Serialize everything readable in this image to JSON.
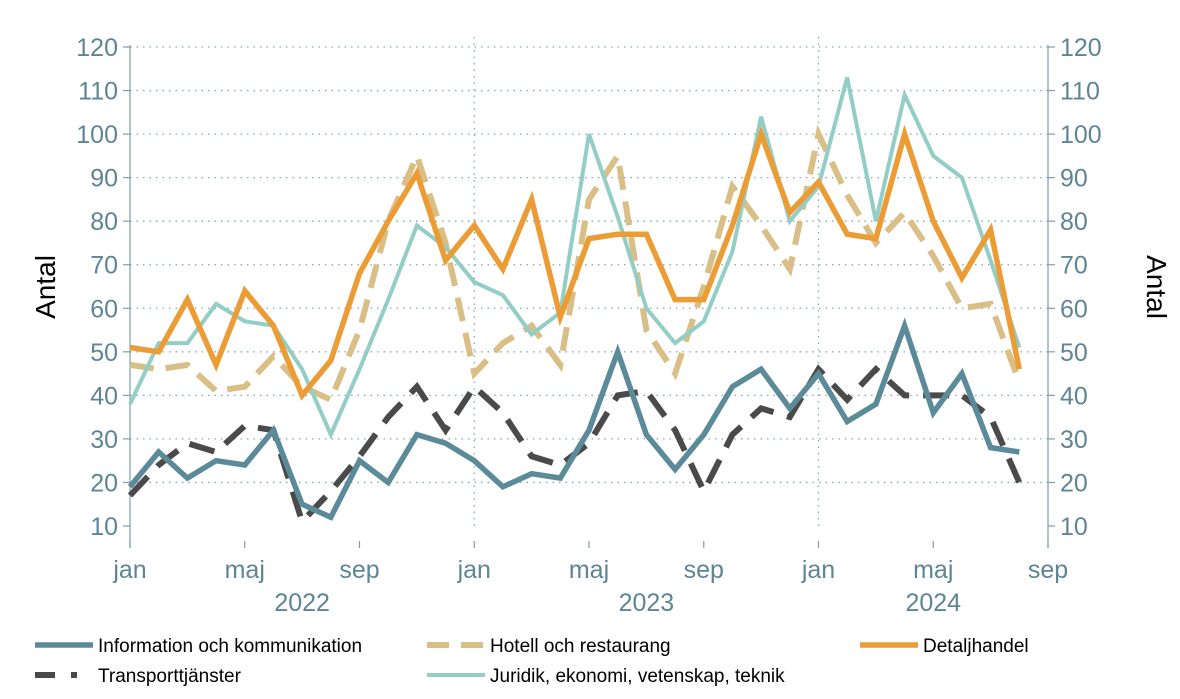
{
  "chart_data": {
    "type": "line",
    "ylabel_left": "Antal",
    "ylabel_right": "Antal",
    "ylim": [
      10,
      120
    ],
    "yticks": [
      10,
      20,
      30,
      40,
      50,
      60,
      70,
      80,
      90,
      100,
      110,
      120
    ],
    "x": [
      "2022-01",
      "2022-02",
      "2022-03",
      "2022-04",
      "2022-05",
      "2022-06",
      "2022-07",
      "2022-08",
      "2022-09",
      "2022-10",
      "2022-11",
      "2022-12",
      "2023-01",
      "2023-02",
      "2023-03",
      "2023-04",
      "2023-05",
      "2023-06",
      "2023-07",
      "2023-08",
      "2023-09",
      "2023-10",
      "2023-11",
      "2023-12",
      "2024-01",
      "2024-02",
      "2024-03",
      "2024-04",
      "2024-05",
      "2024-06",
      "2024-07",
      "2024-08"
    ],
    "xlim": [
      "2022-01",
      "2024-09"
    ],
    "xticks": [
      {
        "label": "jan",
        "x": "2022-01"
      },
      {
        "label": "maj",
        "x": "2022-05"
      },
      {
        "label": "sep",
        "x": "2022-09"
      },
      {
        "label": "jan",
        "x": "2023-01"
      },
      {
        "label": "maj",
        "x": "2023-05"
      },
      {
        "label": "sep",
        "x": "2023-09"
      },
      {
        "label": "jan",
        "x": "2024-01"
      },
      {
        "label": "maj",
        "x": "2024-05"
      },
      {
        "label": "sep",
        "x": "2024-09"
      }
    ],
    "year_labels": [
      {
        "label": "2022",
        "x": "2022-07"
      },
      {
        "label": "2023",
        "x": "2023-07"
      },
      {
        "label": "2024",
        "x": "2024-05"
      }
    ],
    "vertical_gridlines_at": [
      "2023-01",
      "2024-01"
    ],
    "grid": "dotted",
    "legend_position": "bottom",
    "series": [
      {
        "name": "Information och kommunikation",
        "color": "#5b8a99",
        "style": "solid",
        "values": [
          19,
          27,
          21,
          25,
          24,
          32,
          15,
          12,
          25,
          20,
          31,
          29,
          25,
          19,
          22,
          21,
          32,
          50,
          31,
          23,
          31,
          42,
          46,
          37,
          45,
          34,
          38,
          56,
          36,
          45,
          28,
          27
        ]
      },
      {
        "name": "Hotell och restaurang",
        "color": "#d9bf85",
        "style": "dashed",
        "values": [
          47,
          46,
          47,
          41,
          42,
          49,
          42,
          39,
          55,
          80,
          95,
          75,
          45,
          52,
          56,
          47,
          85,
          95,
          55,
          45,
          65,
          88,
          79,
          69,
          100,
          86,
          75,
          82,
          72,
          60,
          61,
          43
        ]
      },
      {
        "name": "Detaljhandel",
        "color": "#ec9c35",
        "style": "solid",
        "values": [
          51,
          50,
          62,
          47,
          64,
          56,
          40,
          48,
          68,
          80,
          91,
          71,
          79,
          69,
          85,
          58,
          76,
          77,
          77,
          62,
          62,
          79,
          100,
          82,
          89,
          77,
          76,
          100,
          80,
          67,
          78,
          46
        ]
      },
      {
        "name": "Transporttjänster",
        "color": "#4a4a4a",
        "style": "dashed",
        "values": [
          17,
          24,
          29,
          27,
          33,
          32,
          11,
          18,
          26,
          35,
          42,
          32,
          42,
          36,
          26,
          24,
          29,
          40,
          41,
          32,
          18,
          31,
          37,
          35,
          46,
          39,
          46,
          40,
          40,
          40,
          35,
          20
        ]
      },
      {
        "name": "Juridik, ekonomi, vetenskap, teknik",
        "color": "#93cec6",
        "style": "solid",
        "values": [
          38,
          52,
          52,
          61,
          57,
          56,
          46,
          31,
          46,
          62,
          79,
          74,
          66,
          63,
          54,
          59,
          100,
          81,
          60,
          52,
          57,
          73,
          104,
          80,
          88,
          113,
          80,
          109,
          95,
          90,
          71,
          51
        ]
      }
    ]
  }
}
